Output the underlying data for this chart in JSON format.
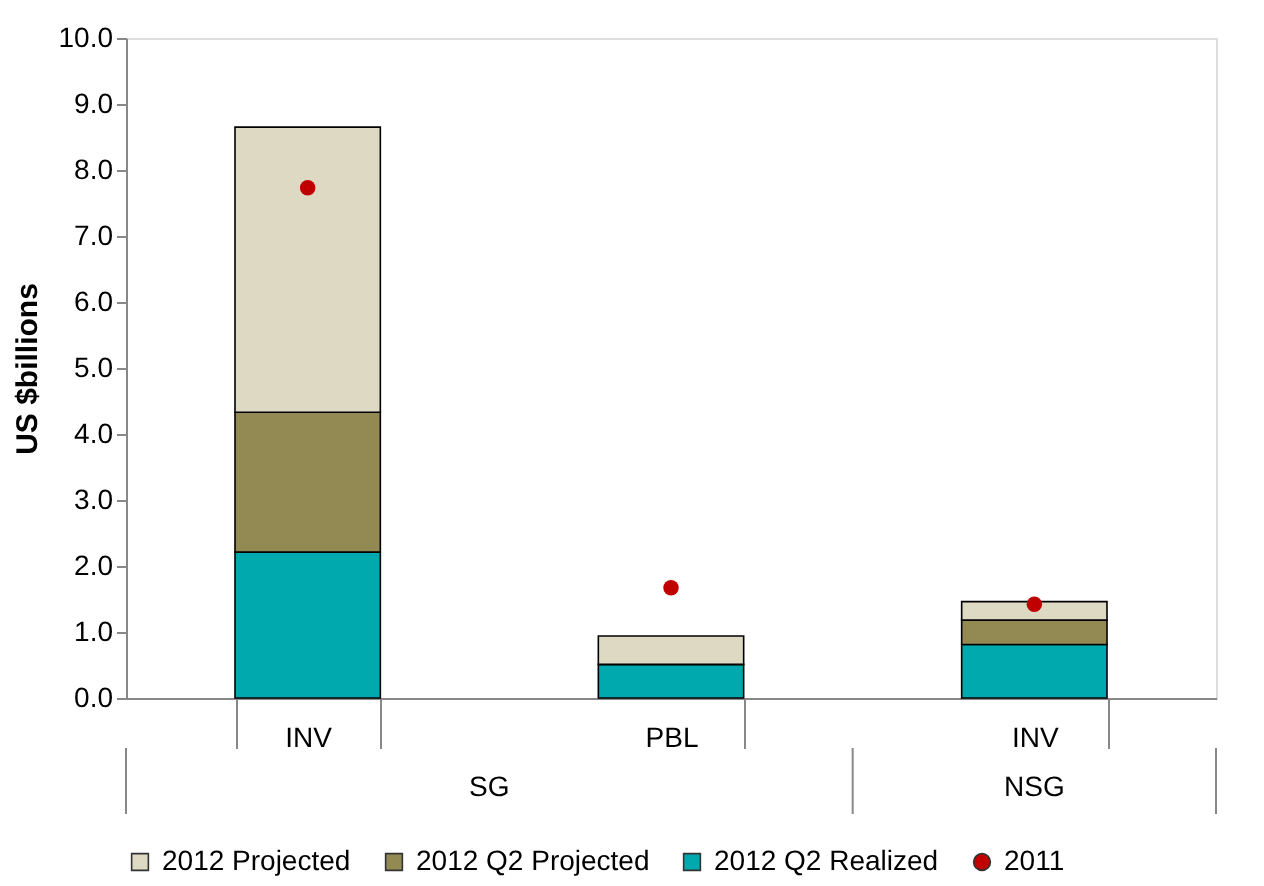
{
  "chart_data": {
    "type": "bar",
    "stacked": true,
    "ylabel": "US $billions",
    "categories": [
      "INV",
      "PBL",
      "INV"
    ],
    "annotations": [
      "SG",
      "NSG"
    ],
    "series": [
      {
        "name": "2012 Q2 Realized",
        "color": "#00a9ad",
        "values": [
          2.21,
          0.51,
          0.81
        ]
      },
      {
        "name": "2012 Q2 Projected",
        "color": "#938953",
        "values": [
          2.12,
          0,
          0.37
        ]
      },
      {
        "name": "2012 Projected",
        "color": "#ddd9c3",
        "values": [
          4.32,
          0.43,
          0.28
        ]
      },
      {
        "name": "2011",
        "type": "scatter",
        "color": "#c00000",
        "marker": "circle",
        "values": [
          7.73,
          1.67,
          1.42
        ]
      }
    ],
    "ylim": [
      0,
      10
    ],
    "yticks": [
      {
        "value": 0,
        "label": "0.0"
      },
      {
        "value": 1,
        "label": "1.0"
      },
      {
        "value": 2,
        "label": "2.0"
      },
      {
        "value": 3,
        "label": "3.0"
      },
      {
        "value": 4,
        "label": "4.0"
      },
      {
        "value": 5,
        "label": "5.0"
      },
      {
        "value": 6,
        "label": "6.0"
      },
      {
        "value": 7,
        "label": "7.0"
      },
      {
        "value": 8,
        "label": "8.0"
      },
      {
        "value": 9,
        "label": "9.0"
      },
      {
        "value": 10,
        "label": "10.0"
      }
    ],
    "grid": false,
    "legend": "bottom"
  }
}
